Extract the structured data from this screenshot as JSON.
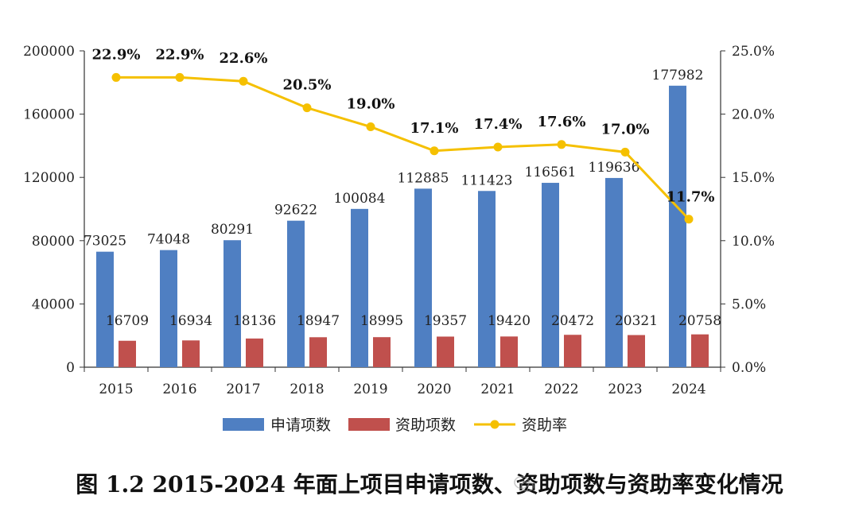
{
  "caption": "图 1.2  2015-2024 年面上项目申请项数、资助项数与资助率变化情况",
  "watermark_icon": "wechat-icon",
  "chart_data": {
    "type": "bar+line",
    "title": "",
    "categories": [
      "2015",
      "2016",
      "2017",
      "2018",
      "2019",
      "2020",
      "2021",
      "2022",
      "2023",
      "2024"
    ],
    "series": [
      {
        "name": "申请项数",
        "type": "bar",
        "axis": "left",
        "color": "#4F7FC2",
        "values": [
          73025,
          74048,
          80291,
          92622,
          100084,
          112885,
          111423,
          116561,
          119636,
          177982
        ]
      },
      {
        "name": "资助项数",
        "type": "bar",
        "axis": "left",
        "color": "#C0504D",
        "values": [
          16709,
          16934,
          18136,
          18947,
          18995,
          19357,
          19420,
          20472,
          20321,
          20758
        ]
      },
      {
        "name": "资助率",
        "type": "line",
        "axis": "right",
        "color": "#F5C000",
        "values": [
          22.9,
          22.9,
          22.6,
          20.5,
          19.0,
          17.1,
          17.4,
          17.6,
          17.0,
          11.7
        ],
        "labels": [
          "22.9%",
          "22.9%",
          "22.6%",
          "20.5%",
          "19.0%",
          "17.1%",
          "17.4%",
          "17.6%",
          "17.0%",
          "11.7%"
        ]
      }
    ],
    "y_left": {
      "lim": [
        0,
        200000
      ],
      "ticks": [
        0,
        40000,
        80000,
        120000,
        160000,
        200000
      ],
      "tick_labels": [
        "0",
        "40000",
        "80000",
        "120000",
        "160000",
        "200000"
      ]
    },
    "y_right": {
      "lim": [
        0,
        25
      ],
      "ticks": [
        0,
        5,
        10,
        15,
        20,
        25
      ],
      "tick_labels": [
        "0.0%",
        "5.0%",
        "10.0%",
        "15.0%",
        "20.0%",
        "25.0%"
      ]
    },
    "xlabel": "",
    "ylabel": "",
    "grid": false,
    "legend": [
      "申请项数",
      "资助项数",
      "资助率"
    ],
    "legend_position": "bottom"
  }
}
